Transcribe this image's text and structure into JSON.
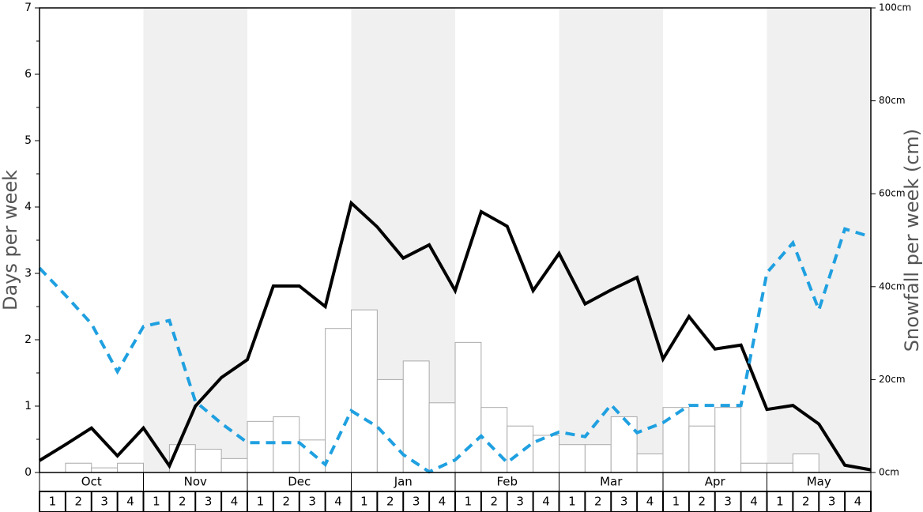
{
  "chart_data": {
    "type": "bar-line",
    "ylabel": "Days per week",
    "y2label": "Snowfall per week (cm)",
    "months": [
      "Oct",
      "Nov",
      "Dec",
      "Jan",
      "Feb",
      "Mar",
      "Apr",
      "May"
    ],
    "week_labels": [
      "1",
      "2",
      "3",
      "4"
    ],
    "ylim": [
      0,
      7
    ],
    "yticks": [
      0,
      1,
      2,
      3,
      4,
      5,
      6,
      7
    ],
    "y2lim": [
      0,
      100
    ],
    "y2ticks": [
      {
        "value": 0,
        "label": "0cm"
      },
      {
        "value": 20,
        "label": "20cm"
      },
      {
        "value": 40,
        "label": "40cm"
      },
      {
        "value": 60,
        "label": "60cm"
      },
      {
        "value": 80,
        "label": "80cm"
      },
      {
        "value": 100,
        "label": "100cm"
      }
    ],
    "series": [
      {
        "type": "bar",
        "axis": "y2",
        "color": "#ffffff",
        "values": [
          0,
          2,
          1,
          2,
          0,
          6,
          5,
          3,
          11,
          12,
          7,
          31,
          35,
          20,
          24,
          15,
          28,
          14,
          10,
          8,
          6,
          6,
          12,
          4,
          14,
          10,
          14,
          2,
          2,
          4,
          0,
          0
        ]
      },
      {
        "type": "line",
        "color": "#000000",
        "values": [
          0.18,
          0.42,
          0.67,
          0.25,
          0.67,
          0.1,
          1.0,
          1.43,
          1.7,
          2.81,
          2.81,
          2.5,
          4.06,
          3.7,
          3.23,
          3.43,
          2.74,
          3.93,
          3.71,
          2.74,
          3.3,
          2.54,
          2.75,
          2.94,
          1.71,
          2.35,
          1.86,
          1.92,
          0.95,
          1.01,
          0.73,
          0.11,
          0.04
        ]
      },
      {
        "type": "line",
        "color": "#1fa0e0",
        "dashed": true,
        "values": [
          3.08,
          2.67,
          2.24,
          1.52,
          2.2,
          2.29,
          1.07,
          0.74,
          0.45,
          0.45,
          0.45,
          0.12,
          0.93,
          0.69,
          0.27,
          0.01,
          0.19,
          0.55,
          0.15,
          0.45,
          0.61,
          0.54,
          1.02,
          0.6,
          0.75,
          1.01,
          1.01,
          1.01,
          3.01,
          3.46,
          2.45,
          3.67,
          3.55
        ]
      }
    ]
  }
}
